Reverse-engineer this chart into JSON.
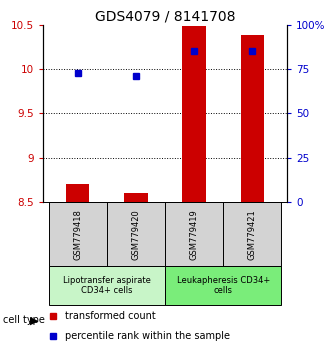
{
  "title": "GDS4079 / 8141708",
  "samples": [
    "GSM779418",
    "GSM779420",
    "GSM779419",
    "GSM779421"
  ],
  "red_values": [
    8.7,
    8.6,
    10.49,
    10.38
  ],
  "blue_percentiles": [
    73.0,
    71.0,
    85.0,
    85.0
  ],
  "ylim_left": [
    8.5,
    10.5
  ],
  "ylim_right": [
    0,
    100
  ],
  "yticks_left": [
    8.5,
    9.0,
    9.5,
    10.0,
    10.5
  ],
  "yticks_right": [
    0,
    25,
    50,
    75,
    100
  ],
  "ytick_labels_left": [
    "8.5",
    "9",
    "9.5",
    "10",
    "10.5"
  ],
  "ytick_labels_right": [
    "0",
    "25",
    "50",
    "75",
    "100%"
  ],
  "dotted_lines": [
    9.0,
    9.5,
    10.0
  ],
  "bar_width": 0.4,
  "cell_type_labels": [
    "Lipotransfer aspirate\nCD34+ cells",
    "Leukapheresis CD34+\ncells"
  ],
  "group_colors": [
    "#c8f5c8",
    "#7aed7a"
  ],
  "sample_box_color": "#d3d3d3",
  "red_color": "#cc0000",
  "blue_color": "#0000cc",
  "title_fontsize": 10,
  "tick_fontsize": 7.5,
  "sample_fontsize": 6,
  "celltype_fontsize": 6,
  "legend_fontsize": 7,
  "label_color_left": "#cc0000",
  "label_color_right": "#0000cc"
}
